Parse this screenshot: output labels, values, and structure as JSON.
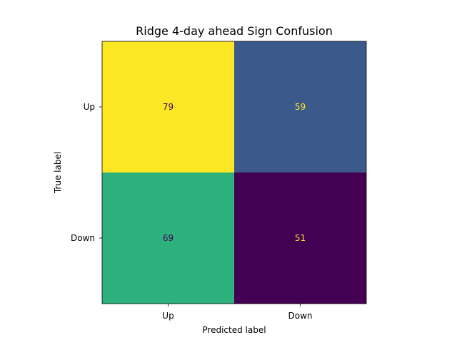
{
  "chart_data": {
    "type": "heatmap",
    "title": "Ridge 4-day ahead Sign Confusion",
    "xlabel": "Predicted label",
    "ylabel": "True label",
    "x_categories": [
      "Up",
      "Down"
    ],
    "y_categories": [
      "Up",
      "Down"
    ],
    "values": [
      [
        79,
        59
      ],
      [
        69,
        51
      ]
    ],
    "colormap": "viridis",
    "color_range": [
      51,
      79
    ],
    "cell_colors": [
      [
        "#fde725",
        "#3b5a8b"
      ],
      [
        "#2db27d",
        "#440154"
      ]
    ],
    "text_colors": [
      [
        "#440154",
        "#fde725"
      ],
      [
        "#440154",
        "#fde725"
      ]
    ],
    "grid": false,
    "colorbar": false
  }
}
